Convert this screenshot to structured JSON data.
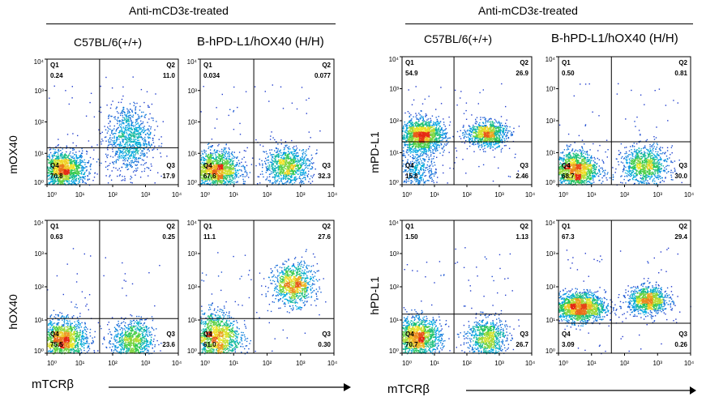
{
  "figure": {
    "left_header": "Anti-mCD3ε-treated",
    "right_header": "Anti-mCD3ε-treated",
    "column_labels": [
      "C57BL/6(+/+)",
      "B-hPD-L1/hOX40 (H/H)",
      "C57BL/6(+/+)",
      "B-hPD-L1/hOX40 (H/H)"
    ],
    "row_labels": [
      "mOX40",
      "hOX40",
      "mPD-L1",
      "hPD-L1"
    ],
    "x_axis_label": "mTCRβ",
    "x_axis_label_right": "mTCRβ"
  },
  "chart_data": [
    {
      "type": "scatter",
      "ylabel": "mOX40",
      "xlabel": "",
      "column": "C57BL/6(+/+)",
      "x_range": [
        1,
        10000
      ],
      "y_range": [
        1,
        10000
      ],
      "log_scale": true,
      "tick_labels": [
        "10⁰",
        "10¹",
        "10²",
        "10³",
        "10⁴"
      ],
      "quadrants": {
        "Q1": "0.24",
        "Q2": "11.0",
        "Q3": "17.9",
        "Q4": "70.8"
      },
      "gate_x": 40,
      "gate_y": 15,
      "clusters": [
        {
          "x": 3,
          "y": 3,
          "n": 1400,
          "sx": 0.35,
          "sy": 0.3
        },
        {
          "x": 300,
          "y": 30,
          "n": 900,
          "sx": 0.35,
          "sy": 0.55
        }
      ]
    },
    {
      "type": "scatter",
      "ylabel": "",
      "xlabel": "",
      "column": "B-hPD-L1/hOX40 (H/H)",
      "x_range": [
        1,
        10000
      ],
      "y_range": [
        1,
        10000
      ],
      "log_scale": true,
      "tick_labels": [
        "10⁰",
        "10¹",
        "10²",
        "10³",
        "10⁴"
      ],
      "quadrants": {
        "Q1": "0.034",
        "Q2": "0.077",
        "Q3": "32.3",
        "Q4": "67.6"
      },
      "gate_x": 40,
      "gate_y": 22,
      "clusters": [
        {
          "x": 3,
          "y": 3,
          "n": 1400,
          "sx": 0.35,
          "sy": 0.3
        },
        {
          "x": 400,
          "y": 4,
          "n": 900,
          "sx": 0.35,
          "sy": 0.3
        }
      ]
    },
    {
      "type": "scatter",
      "ylabel": "hOX40",
      "xlabel": "mTCRβ",
      "column": "C57BL/6(+/+)",
      "x_range": [
        1,
        10000
      ],
      "y_range": [
        1,
        10000
      ],
      "log_scale": true,
      "tick_labels": [
        "10⁰",
        "10¹",
        "10²",
        "10³",
        "10⁴"
      ],
      "quadrants": {
        "Q1": "0.63",
        "Q2": "0.25",
        "Q3": "23.6",
        "Q4": "75.5"
      },
      "gate_x": 40,
      "gate_y": 11,
      "clusters": [
        {
          "x": 3,
          "y": 2.5,
          "n": 1400,
          "sx": 0.35,
          "sy": 0.3
        },
        {
          "x": 400,
          "y": 2.5,
          "n": 800,
          "sx": 0.3,
          "sy": 0.3
        }
      ]
    },
    {
      "type": "scatter",
      "ylabel": "",
      "xlabel": "mTCRβ",
      "column": "B-hPD-L1/hOX40 (H/H)",
      "x_range": [
        1,
        10000
      ],
      "y_range": [
        1,
        10000
      ],
      "log_scale": true,
      "tick_labels": [
        "10⁰",
        "10¹",
        "10²",
        "10³",
        "10⁴"
      ],
      "quadrants": {
        "Q1": "11.1",
        "Q2": "27.6",
        "Q3": "0.30",
        "Q4": "61.0"
      },
      "gate_x": 40,
      "gate_y": 11,
      "clusters": [
        {
          "x": 3,
          "y": 3,
          "n": 1300,
          "sx": 0.35,
          "sy": 0.4
        },
        {
          "x": 600,
          "y": 120,
          "n": 900,
          "sx": 0.3,
          "sy": 0.3
        }
      ]
    },
    {
      "type": "scatter",
      "ylabel": "mPD-L1",
      "xlabel": "",
      "column": "C57BL/6(+/+)",
      "x_range": [
        1,
        10000
      ],
      "y_range": [
        1,
        10000
      ],
      "log_scale": true,
      "tick_labels": [
        "10⁰",
        "10¹",
        "10²",
        "10³",
        "10⁴"
      ],
      "quadrants": {
        "Q1": "54.9",
        "Q2": "26.9",
        "Q3": "2.46",
        "Q4": "15.8"
      },
      "gate_x": 40,
      "gate_y": 22,
      "clusters": [
        {
          "x": 4,
          "y": 35,
          "n": 1500,
          "sx": 0.35,
          "sy": 0.25
        },
        {
          "x": 400,
          "y": 40,
          "n": 900,
          "sx": 0.3,
          "sy": 0.2
        },
        {
          "x": 3,
          "y": 3,
          "n": 350,
          "sx": 0.3,
          "sy": 0.3
        }
      ]
    },
    {
      "type": "scatter",
      "ylabel": "",
      "xlabel": "",
      "column": "B-hPD-L1/hOX40 (H/H)",
      "x_range": [
        1,
        10000
      ],
      "y_range": [
        1,
        10000
      ],
      "log_scale": true,
      "tick_labels": [
        "10⁰",
        "10¹",
        "10²",
        "10³",
        "10⁴"
      ],
      "quadrants": {
        "Q1": "0.50",
        "Q2": "0.81",
        "Q3": "30.0",
        "Q4": "68.7"
      },
      "gate_x": 40,
      "gate_y": 22,
      "clusters": [
        {
          "x": 3,
          "y": 3,
          "n": 1400,
          "sx": 0.35,
          "sy": 0.3
        },
        {
          "x": 400,
          "y": 4,
          "n": 900,
          "sx": 0.35,
          "sy": 0.3
        }
      ]
    },
    {
      "type": "scatter",
      "ylabel": "hPD-L1",
      "xlabel": "mTCRβ",
      "column": "C57BL/6(+/+)",
      "x_range": [
        1,
        10000
      ],
      "y_range": [
        1,
        10000
      ],
      "log_scale": true,
      "tick_labels": [
        "10⁰",
        "10¹",
        "10²",
        "10³",
        "10⁴"
      ],
      "quadrants": {
        "Q1": "1.50",
        "Q2": "1.13",
        "Q3": "26.7",
        "Q4": "70.7"
      },
      "gate_x": 40,
      "gate_y": 15,
      "clusters": [
        {
          "x": 3,
          "y": 3,
          "n": 1400,
          "sx": 0.35,
          "sy": 0.3
        },
        {
          "x": 400,
          "y": 3,
          "n": 800,
          "sx": 0.3,
          "sy": 0.3
        }
      ]
    },
    {
      "type": "scatter",
      "ylabel": "",
      "xlabel": "mTCRβ",
      "column": "B-hPD-L1/hOX40 (H/H)",
      "x_range": [
        1,
        10000
      ],
      "y_range": [
        1,
        10000
      ],
      "log_scale": true,
      "tick_labels": [
        "10⁰",
        "10¹",
        "10²",
        "10³",
        "10⁴"
      ],
      "quadrants": {
        "Q1": "67.3",
        "Q2": "29.4",
        "Q3": "0.26",
        "Q4": "3.09"
      },
      "gate_x": 40,
      "gate_y": 8,
      "clusters": [
        {
          "x": 4,
          "y": 25,
          "n": 1700,
          "sx": 0.4,
          "sy": 0.22
        },
        {
          "x": 500,
          "y": 40,
          "n": 1000,
          "sx": 0.3,
          "sy": 0.2
        }
      ]
    }
  ]
}
